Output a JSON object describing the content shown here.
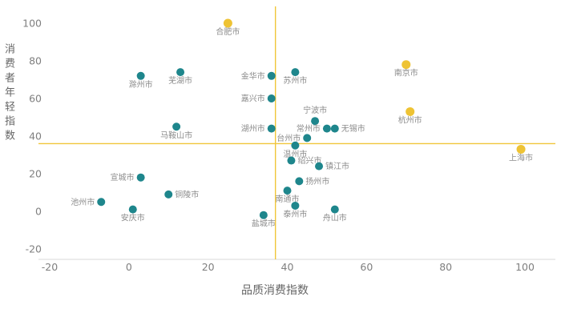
{
  "chart_data": {
    "type": "scatter",
    "title": "",
    "xlabel": "品质消费指数",
    "ylabel": "消费者年轻指数",
    "xlim": [
      -20,
      100
    ],
    "ylim": [
      -20,
      100
    ],
    "x_ticks": [
      -20,
      0,
      20,
      40,
      60,
      80,
      100
    ],
    "y_ticks": [
      -20,
      0,
      20,
      40,
      60,
      80,
      100
    ],
    "grid": false,
    "legend": false,
    "axis_line_color": "#d9d9d9",
    "quadrant_lines": {
      "x": 37,
      "y": 36,
      "color": "#f0c63a"
    },
    "label_color": "#8c8c8c",
    "tick_color": "#7f7f7f",
    "axis_title_color": "#666666",
    "background": "#ffffff",
    "series": [
      {
        "name": "gold-highlight",
        "color": "#eec334",
        "points": [
          {
            "city": "合肥市",
            "x": 25,
            "y": 100,
            "label_pos": "below"
          },
          {
            "city": "南京市",
            "x": 70,
            "y": 78,
            "label_pos": "below"
          },
          {
            "city": "杭州市",
            "x": 71,
            "y": 53,
            "label_pos": "below"
          },
          {
            "city": "上海市",
            "x": 99,
            "y": 33,
            "label_pos": "below"
          }
        ]
      },
      {
        "name": "teal",
        "color": "#1e868c",
        "points": [
          {
            "city": "滁州市",
            "x": 3,
            "y": 72,
            "label_pos": "below"
          },
          {
            "city": "芜湖市",
            "x": 13,
            "y": 74,
            "label_pos": "below"
          },
          {
            "city": "金华市",
            "x": 36,
            "y": 72,
            "label_pos": "left"
          },
          {
            "city": "苏州市",
            "x": 42,
            "y": 74,
            "label_pos": "below"
          },
          {
            "city": "嘉兴市",
            "x": 36,
            "y": 60,
            "label_pos": "left"
          },
          {
            "city": "宁波市",
            "x": 47,
            "y": 48,
            "label_pos": "above"
          },
          {
            "city": "马鞍山市",
            "x": 12,
            "y": 45,
            "label_pos": "below"
          },
          {
            "city": "湖州市",
            "x": 36,
            "y": 44,
            "label_pos": "left"
          },
          {
            "city": "台州市",
            "x": 45,
            "y": 39,
            "label_pos": "left"
          },
          {
            "city": "常州市",
            "x": 50,
            "y": 44,
            "label_pos": "left"
          },
          {
            "city": "无锡市",
            "x": 52,
            "y": 44,
            "label_pos": "right"
          },
          {
            "city": "温州市",
            "x": 42,
            "y": 35,
            "label_pos": "below"
          },
          {
            "city": "绍兴市",
            "x": 41,
            "y": 27,
            "label_pos": "right"
          },
          {
            "city": "镇江市",
            "x": 48,
            "y": 24,
            "label_pos": "right"
          },
          {
            "city": "宣城市",
            "x": 3,
            "y": 18,
            "label_pos": "left"
          },
          {
            "city": "铜陵市",
            "x": 10,
            "y": 9,
            "label_pos": "right"
          },
          {
            "city": "扬州市",
            "x": 43,
            "y": 16,
            "label_pos": "right"
          },
          {
            "city": "池州市",
            "x": -7,
            "y": 5,
            "label_pos": "left"
          },
          {
            "city": "南通市",
            "x": 40,
            "y": 11,
            "label_pos": "below"
          },
          {
            "city": "安庆市",
            "x": 1,
            "y": 1,
            "label_pos": "below"
          },
          {
            "city": "盐城市",
            "x": 34,
            "y": -2,
            "label_pos": "below"
          },
          {
            "city": "泰州市",
            "x": 42,
            "y": 3,
            "label_pos": "below"
          },
          {
            "city": "舟山市",
            "x": 52,
            "y": 1,
            "label_pos": "below"
          }
        ]
      }
    ]
  }
}
